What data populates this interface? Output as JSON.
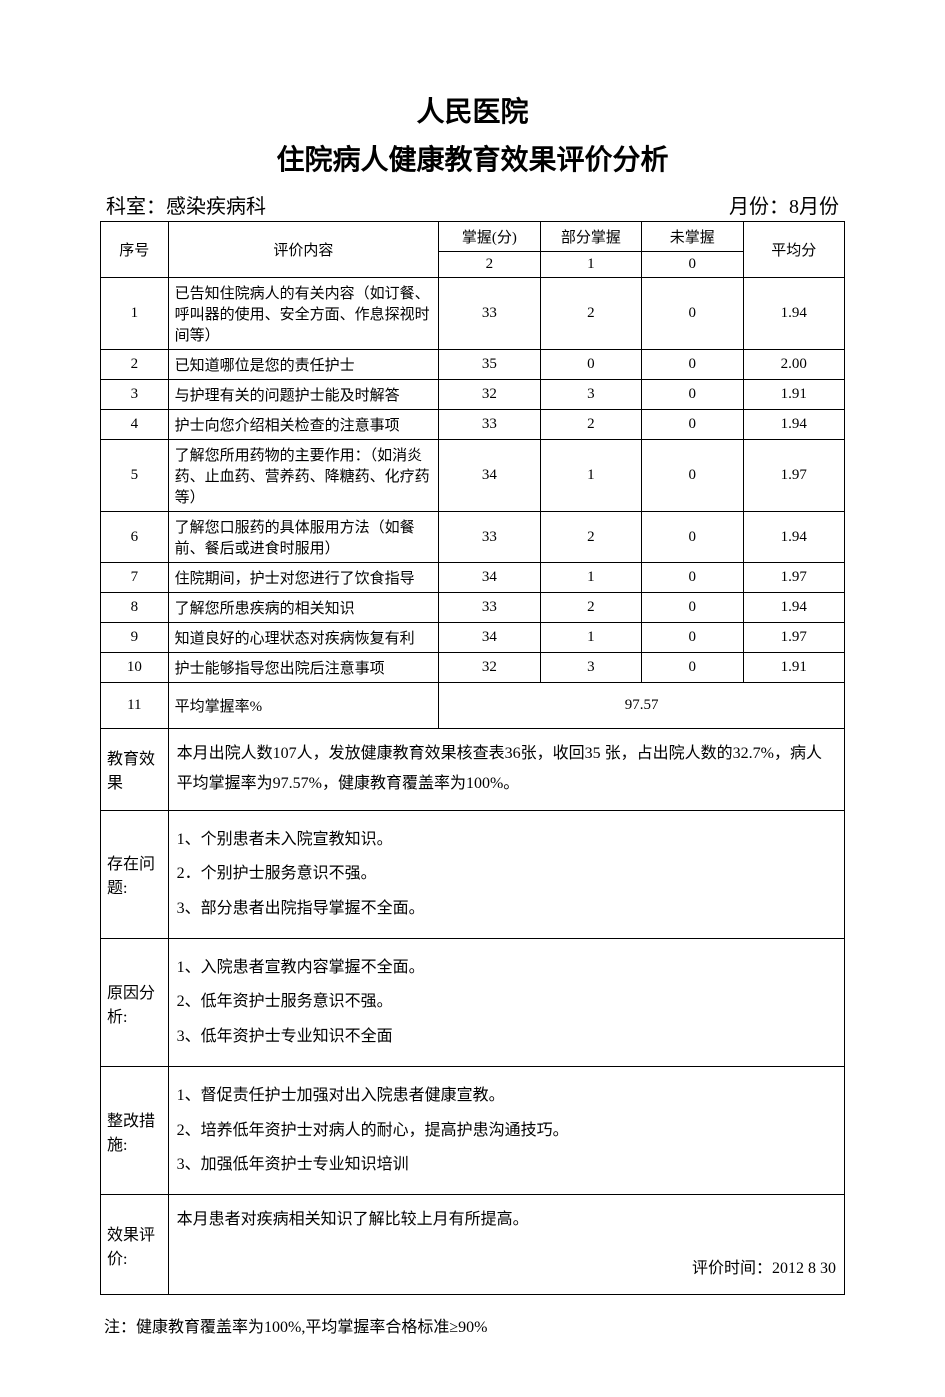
{
  "header": {
    "hospital": "人民医院",
    "report_title": "住院病人健康教育效果评价分析",
    "dept_label": "科室：",
    "dept_value": "感染疾病科",
    "month_label": "月份：",
    "month_value": "8月份"
  },
  "columns": {
    "seq": "序号",
    "content": "评价内容",
    "mastered": "掌握(分)",
    "partial": "部分掌握",
    "not_mastered": "未掌握",
    "avg": "平均分",
    "mastered_pts": "2",
    "partial_pts": "1",
    "not_mastered_pts": "0"
  },
  "rows": [
    {
      "seq": "1",
      "content": "已告知住院病人的有关内容（如订餐、呼叫器的使用、安全方面、作息探视时间等）",
      "m": "33",
      "p": "2",
      "n": "0",
      "avg": "1.94"
    },
    {
      "seq": "2",
      "content": "已知道哪位是您的责任护士",
      "m": "35",
      "p": "0",
      "n": "0",
      "avg": "2.00"
    },
    {
      "seq": "3",
      "content": "与护理有关的问题护士能及时解答",
      "m": "32",
      "p": "3",
      "n": "0",
      "avg": "1.91"
    },
    {
      "seq": "4",
      "content": "护士向您介绍相关检查的注意事项",
      "m": "33",
      "p": "2",
      "n": "0",
      "avg": "1.94"
    },
    {
      "seq": "5",
      "content": "了解您所用药物的主要作用：（如消炎药、止血药、营养药、降糖药、化疗药等）",
      "m": "34",
      "p": "1",
      "n": "0",
      "avg": "1.97"
    },
    {
      "seq": "6",
      "content": "了解您口服药的具体服用方法（如餐前、餐后或进食时服用）",
      "m": "33",
      "p": "2",
      "n": "0",
      "avg": "1.94"
    },
    {
      "seq": "7",
      "content": "住院期间，护士对您进行了饮食指导",
      "m": "34",
      "p": "1",
      "n": "0",
      "avg": "1.97"
    },
    {
      "seq": "8",
      "content": "了解您所患疾病的相关知识",
      "m": "33",
      "p": "2",
      "n": "0",
      "avg": "1.94"
    },
    {
      "seq": "9",
      "content": "知道良好的心理状态对疾病恢复有利",
      "m": "34",
      "p": "1",
      "n": "0",
      "avg": "1.97"
    },
    {
      "seq": "10",
      "content": "护士能够指导您出院后注意事项",
      "m": "32",
      "p": "3",
      "n": "0",
      "avg": "1.91"
    }
  ],
  "summary_row": {
    "seq": "11",
    "label": "平均掌握率%",
    "value": "97.57"
  },
  "sections": {
    "effect_label": "教育效果",
    "effect_text": "本月出院人数107人，发放健康教育效果核查表36张，收回35 张，占出院人数的32.7%，病人平均掌握率为97.57%，健康教育覆盖率为100%。",
    "problem_label": "存在问题:",
    "problem_lines": [
      "1、个别患者未入院宣教知识。",
      "2．个别护士服务意识不强。",
      "3、部分患者出院指导掌握不全面。"
    ],
    "cause_label": "原因分析:",
    "cause_lines": [
      "1、入院患者宣教内容掌握不全面。",
      "2、低年资护士服务意识不强。",
      "3、低年资护士专业知识不全面"
    ],
    "action_label": "整改措施:",
    "action_lines": [
      "1、督促责任护士加强对出入院患者健康宣教。",
      "2、培养低年资护士对病人的耐心，提高护患沟通技巧。",
      "3、加强低年资护士专业知识培训"
    ],
    "eval_label": "效果评价:",
    "eval_text": "本月患者对疾病相关知识了解比较上月有所提高。",
    "eval_time_label": "评价时间：",
    "eval_time_value": "2012 8 30"
  },
  "footnote": "注：健康教育覆盖率为100%,平均掌握率合格标准≥90%",
  "style": {
    "border_color": "#000000",
    "background_color": "#ffffff",
    "text_color": "#000000",
    "title_fontsize": 28,
    "body_fontsize": 15,
    "section_fontsize": 16
  }
}
